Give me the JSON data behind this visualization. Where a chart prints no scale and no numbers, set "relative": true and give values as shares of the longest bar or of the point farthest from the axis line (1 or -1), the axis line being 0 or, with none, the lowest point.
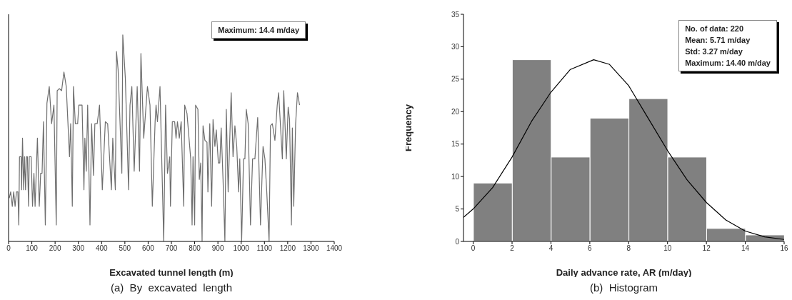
{
  "chart_data": [
    {
      "type": "line",
      "title": "(a)  By  excavated  length",
      "xlabel": "Excavated tunnel length (m)",
      "relative": true,
      "color": "#6e6e6e",
      "xlim": [
        0,
        1400
      ],
      "xticks": [
        0,
        100,
        200,
        300,
        400,
        500,
        600,
        700,
        800,
        900,
        1000,
        1100,
        1200,
        1300,
        1400
      ],
      "annotations": [
        "Maximum: 14.4 m/day"
      ],
      "x": [
        3,
        9,
        16,
        22,
        28,
        34,
        40,
        44,
        47,
        54,
        56,
        60,
        65,
        69,
        73,
        77,
        81,
        86,
        89,
        97,
        103,
        109,
        114,
        124,
        132,
        138,
        144,
        150,
        158,
        165,
        175,
        185,
        195,
        205,
        209,
        218,
        228,
        238,
        248,
        262,
        267,
        274,
        279,
        287,
        297,
        302,
        316,
        324,
        328,
        334,
        340,
        350,
        357,
        365,
        371,
        381,
        391,
        403,
        416,
        426,
        438,
        442,
        448,
        459,
        464,
        471,
        487,
        491,
        502,
        516,
        522,
        530,
        540,
        553,
        563,
        569,
        581,
        597,
        608,
        618,
        630,
        634,
        640,
        651,
        667,
        675,
        683,
        693,
        696,
        704,
        714,
        720,
        726,
        734,
        742,
        753,
        757,
        767,
        783,
        789,
        793,
        800,
        804,
        814,
        820,
        826,
        832,
        836,
        844,
        853,
        857,
        865,
        873,
        879,
        887,
        893,
        902,
        908,
        914,
        922,
        930,
        936,
        944,
        957,
        965,
        973,
        981,
        989,
        994,
        1002,
        1010,
        1016,
        1022,
        1030,
        1040,
        1049,
        1059,
        1071,
        1083,
        1094,
        1102,
        1110,
        1120,
        1126,
        1134,
        1145,
        1155,
        1161,
        1177,
        1183,
        1194,
        1202,
        1208,
        1216,
        1220,
        1226,
        1234,
        1242,
        1251
      ],
      "values": [
        0.21,
        0.24,
        0.17,
        0.24,
        0.17,
        0.24,
        0.24,
        0.08,
        0.41,
        0.41,
        0.25,
        0.5,
        0.25,
        0.41,
        0.25,
        0.41,
        0.41,
        0.17,
        0.41,
        0.41,
        0.17,
        0.33,
        0.17,
        0.5,
        0.17,
        0.33,
        0.33,
        0.58,
        0.08,
        0.67,
        0.75,
        0.57,
        0.66,
        0.08,
        0.73,
        0.74,
        0.73,
        0.82,
        0.75,
        0.41,
        0.57,
        0.17,
        0.75,
        0.57,
        0.57,
        0.66,
        0.66,
        0.25,
        0.5,
        0.34,
        0.66,
        0.08,
        0.57,
        0.32,
        0.57,
        0.57,
        0.66,
        0.25,
        0.58,
        0.57,
        0.33,
        0.25,
        0.5,
        0.25,
        0.92,
        0.83,
        0.33,
        1,
        0.79,
        0.25,
        0.66,
        0.75,
        0.34,
        0.75,
        0.34,
        0.91,
        0.5,
        0.75,
        0.66,
        0.17,
        0.58,
        0.66,
        0.58,
        0.75,
        0,
        0.66,
        0.33,
        0.41,
        0.17,
        0.58,
        0.58,
        0.5,
        0.58,
        0.5,
        0.58,
        0.17,
        0.66,
        0.62,
        0.4,
        0.08,
        0.41,
        0.08,
        0.66,
        0.64,
        0.3,
        0.38,
        0,
        0.56,
        0.49,
        0.48,
        0.24,
        0.57,
        0.17,
        0.59,
        0.46,
        0.54,
        0.38,
        0.38,
        0.55,
        0.3,
        0,
        0.64,
        0.24,
        0.72,
        0.41,
        0.56,
        0.46,
        0.24,
        0.4,
        0,
        0.4,
        0.4,
        0.64,
        0.57,
        0.08,
        0.4,
        0.4,
        0.6,
        0.08,
        0.46,
        0.4,
        0.24,
        0,
        0.56,
        0.57,
        0.49,
        0.66,
        0.72,
        0.4,
        0.73,
        0.4,
        0.65,
        0.59,
        0.08,
        0.55,
        0.17,
        0.57,
        0.72,
        0.66
      ]
    },
    {
      "type": "histogram",
      "title": "(b)  Histogram",
      "xlabel": "Daily advance rate, AR (m/day)",
      "ylabel": "Frequency",
      "color": "#808080",
      "bins": [
        0,
        2,
        4,
        6,
        8,
        10,
        12,
        14,
        16
      ],
      "values": [
        9,
        28,
        13,
        19,
        22,
        13,
        2,
        1
      ],
      "xlim": [
        -0.5,
        16
      ],
      "xticks": [
        0,
        2,
        4,
        6,
        8,
        10,
        12,
        14,
        16
      ],
      "ylim": [
        0,
        35
      ],
      "yticks": [
        0,
        5,
        10,
        15,
        20,
        25,
        30,
        35
      ],
      "annotations": [
        "No. of data: 220",
        "Mean: 5.71 m/day",
        "Std: 3.27 m/day",
        "Maximum: 14.40 m/day"
      ],
      "series": [
        {
          "type": "line",
          "color": "#000000",
          "x": [
            -0.5,
            0,
            1,
            2,
            3,
            4,
            5,
            6.2,
            7,
            8,
            9,
            10,
            11,
            12,
            13,
            14,
            15,
            16
          ],
          "values": [
            3.7,
            5,
            8.3,
            13,
            18.5,
            23,
            26.5,
            28,
            27.3,
            24,
            19,
            14,
            9.5,
            6,
            3.3,
            1.6,
            0.7,
            0.3
          ]
        }
      ]
    }
  ]
}
